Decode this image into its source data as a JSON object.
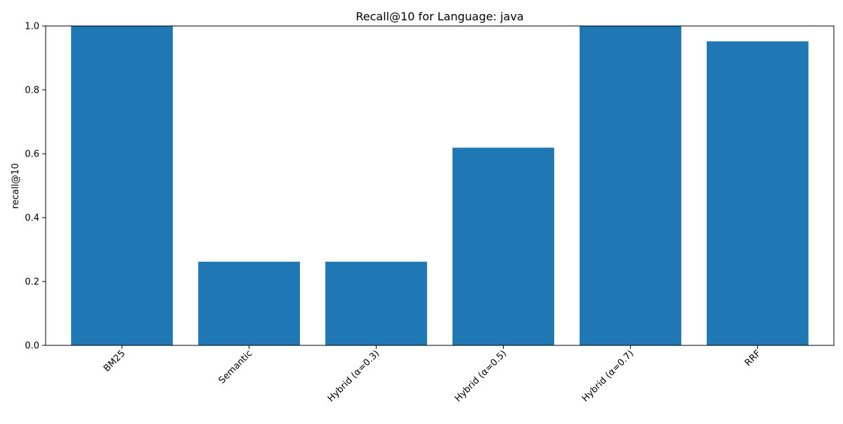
{
  "chart_data": {
    "type": "bar",
    "title": "Recall@10 for Language: java",
    "xlabel": "",
    "ylabel": "recall@10",
    "categories": [
      "BM25",
      "Semantic",
      "Hybrid (α=0.3)",
      "Hybrid (α=0.5)",
      "Hybrid (α=0.7)",
      "RRF"
    ],
    "values": [
      1.0,
      0.262,
      0.262,
      0.619,
      1.0,
      0.952
    ],
    "ylim": [
      0,
      1.0
    ],
    "yticks": [
      0.0,
      0.2,
      0.4,
      0.6,
      0.8,
      1.0
    ],
    "ytick_labels": [
      "0.0",
      "0.2",
      "0.4",
      "0.6",
      "0.8",
      "1.0"
    ],
    "grid": false,
    "legend": "none",
    "bar_color": "#1f77b4",
    "axis_color": "#000000",
    "background_color": "#ffffff",
    "xtick_rotation_deg": 45
  }
}
